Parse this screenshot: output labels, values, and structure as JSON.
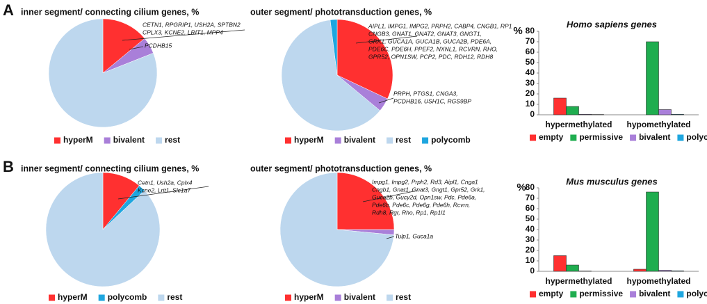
{
  "panels": [
    "A",
    "B"
  ],
  "chart_data": [
    {
      "type": "pie",
      "title": "inner segment/ connecting cilium genes, %",
      "categories": [
        "hyperM",
        "bivalent",
        "rest"
      ],
      "values": [
        14,
        5,
        81
      ],
      "colors": [
        "#ff3030",
        "#a97fd9",
        "#bdd7ee"
      ],
      "annotations": [
        [
          "CETN1, RPGRIP1, USH2A, SPTBN2",
          "CPLX3, KCNE2, LRIT1, MPP4"
        ],
        [
          "PCDHB15"
        ]
      ]
    },
    {
      "type": "pie",
      "title": "outer segment/ phototransduction genes, %",
      "categories": [
        "hyperM",
        "bivalent",
        "rest",
        "polycomb"
      ],
      "values": [
        32,
        4,
        62,
        2
      ],
      "colors": [
        "#ff3030",
        "#a97fd9",
        "#bdd7ee",
        "#1ea6df"
      ],
      "annotations": [
        [
          "AIPL1, IMPG1, IMPG2, PRPH2, CABP4, CNGB1, RP1",
          "CNGB3, GNAT1, GNAT2, GNAT3, GNGT1,",
          "GRK1, GUCA1A, GUCA1B, GUCA2B, PDE6A,",
          "PDE6C, PDE6H, PPEF2, NXNL1, RCVRN, RHO,",
          "GPR52, OPN1SW, PCP2, PDC, RDH12, RDH8"
        ],
        [
          "PRPH, PTGS1, CNGA3,",
          "PCDHB16, USH1C, RGS9BP"
        ]
      ]
    },
    {
      "type": "bar",
      "title": "Homo sapiens genes",
      "y_label": "%",
      "categories": [
        "hypermethylated",
        "hypomethylated"
      ],
      "series": [
        {
          "name": "empty",
          "color": "#ff3030",
          "values": [
            16,
            0
          ]
        },
        {
          "name": "permissive",
          "color": "#1fad4f",
          "values": [
            8,
            70
          ]
        },
        {
          "name": "bivalent",
          "color": "#a97fd9",
          "values": [
            0.5,
            5
          ]
        },
        {
          "name": "polycomb",
          "color": "#1ea6df",
          "values": [
            0.3,
            0.5
          ]
        }
      ],
      "ylim": [
        0,
        80
      ],
      "yticks": [
        0,
        10,
        20,
        30,
        40,
        50,
        60,
        70,
        80
      ]
    },
    {
      "type": "pie",
      "title": "inner segment/ connecting cilium genes, %",
      "categories": [
        "hyperM",
        "polycomb",
        "rest"
      ],
      "values": [
        11,
        2,
        87
      ],
      "colors": [
        "#ff3030",
        "#1ea6df",
        "#bdd7ee"
      ],
      "annotations": [
        [
          "Cetn1, Ush2a, Cplx4",
          "Kcne2, Lrit1, Slc1a7"
        ]
      ]
    },
    {
      "type": "pie",
      "title": "outer segment/ phototransduction genes, %",
      "categories": [
        "hyperM",
        "bivalent",
        "rest"
      ],
      "values": [
        25,
        1.5,
        73.5
      ],
      "colors": [
        "#ff3030",
        "#a97fd9",
        "#bdd7ee"
      ],
      "annotations": [
        [
          "Impg1, Impg2, Prph2, Rd3, Aipl1, Cnga1",
          "Cngb1, Gnat1, Gnat3, Gngt1, Gpr52, Grk1,",
          "Guca2b, Gucy2d, Opn1sw, Pdc, Pde6a,",
          "Pde6b, Pde6c, Pde6g, Pde6h, Rcvrn,",
          "Rdh8, Rgr, Rho, Rp1, Rp1l1"
        ],
        [
          "Tulp1, Guca1a"
        ]
      ]
    },
    {
      "type": "bar",
      "title": "Mus musculus genes",
      "y_label": "%",
      "categories": [
        "hypermethylated",
        "hypomethylated"
      ],
      "series": [
        {
          "name": "empty",
          "color": "#ff3030",
          "values": [
            15,
            2
          ]
        },
        {
          "name": "permissive",
          "color": "#1fad4f",
          "values": [
            6,
            76
          ]
        },
        {
          "name": "bivalent",
          "color": "#a97fd9",
          "values": [
            0.3,
            1
          ]
        },
        {
          "name": "polycomb",
          "color": "#1ea6df",
          "values": [
            0,
            0.5
          ]
        }
      ],
      "ylim": [
        0,
        80
      ],
      "yticks": [
        0,
        10,
        20,
        30,
        40,
        50,
        60,
        70,
        80
      ]
    }
  ]
}
